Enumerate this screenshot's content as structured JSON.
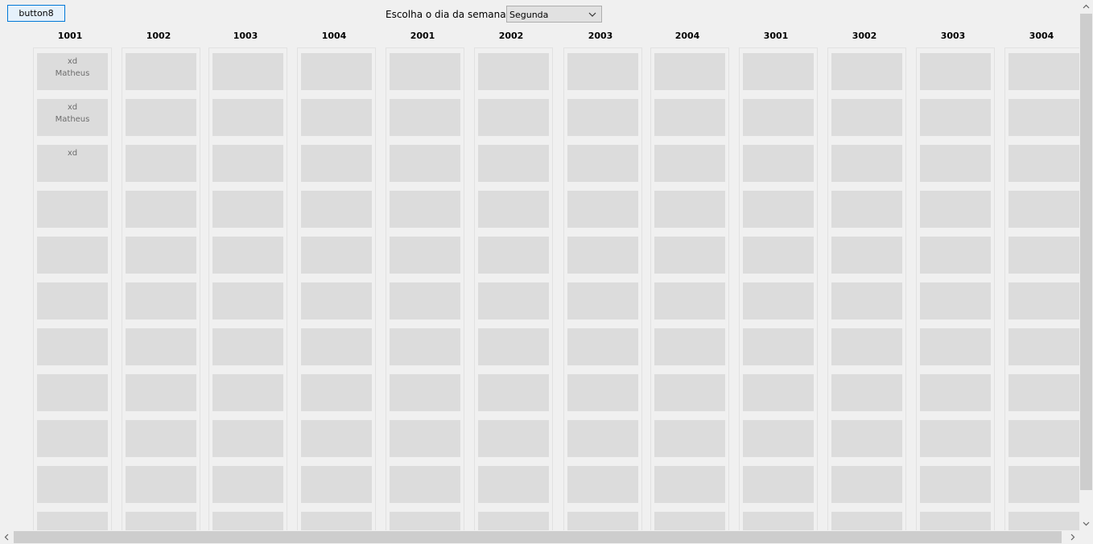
{
  "toolbar": {
    "button_label": "button8",
    "day_label": "Escolha o dia da semana:",
    "day_selected": "Segunda"
  },
  "rooms": [
    {
      "name": "1001",
      "cells": [
        [
          "xd",
          "Matheus"
        ],
        [
          "xd",
          "Matheus"
        ],
        [
          "xd"
        ],
        [],
        [],
        [],
        [],
        [],
        [],
        [],
        []
      ]
    },
    {
      "name": "1002",
      "cells": [
        [],
        [],
        [],
        [],
        [],
        [],
        [],
        [],
        [],
        [],
        []
      ]
    },
    {
      "name": "1003",
      "cells": [
        [],
        [],
        [],
        [],
        [],
        [],
        [],
        [],
        [],
        [],
        []
      ]
    },
    {
      "name": "1004",
      "cells": [
        [],
        [],
        [],
        [],
        [],
        [],
        [],
        [],
        [],
        [],
        []
      ]
    },
    {
      "name": "2001",
      "cells": [
        [],
        [],
        [],
        [],
        [],
        [],
        [],
        [],
        [],
        [],
        []
      ]
    },
    {
      "name": "2002",
      "cells": [
        [],
        [],
        [],
        [],
        [],
        [],
        [],
        [],
        [],
        [],
        []
      ]
    },
    {
      "name": "2003",
      "cells": [
        [],
        [],
        [],
        [],
        [],
        [],
        [],
        [],
        [],
        [],
        []
      ]
    },
    {
      "name": "2004",
      "cells": [
        [],
        [],
        [],
        [],
        [],
        [],
        [],
        [],
        [],
        [],
        []
      ]
    },
    {
      "name": "3001",
      "cells": [
        [],
        [],
        [],
        [],
        [],
        [],
        [],
        [],
        [],
        [],
        []
      ]
    },
    {
      "name": "3002",
      "cells": [
        [],
        [],
        [],
        [],
        [],
        [],
        [],
        [],
        [],
        [],
        []
      ]
    },
    {
      "name": "3003",
      "cells": [
        [],
        [],
        [],
        [],
        [],
        [],
        [],
        [],
        [],
        [],
        []
      ]
    },
    {
      "name": "3004",
      "cells": [
        [],
        [],
        [],
        [],
        [],
        [],
        [],
        [],
        [],
        [],
        []
      ]
    }
  ],
  "icons": {
    "dropdown": "chevron-down-icon",
    "scroll_up": "chevron-up-icon",
    "scroll_down": "chevron-down-icon",
    "scroll_left": "chevron-left-icon",
    "scroll_right": "chevron-right-icon"
  }
}
